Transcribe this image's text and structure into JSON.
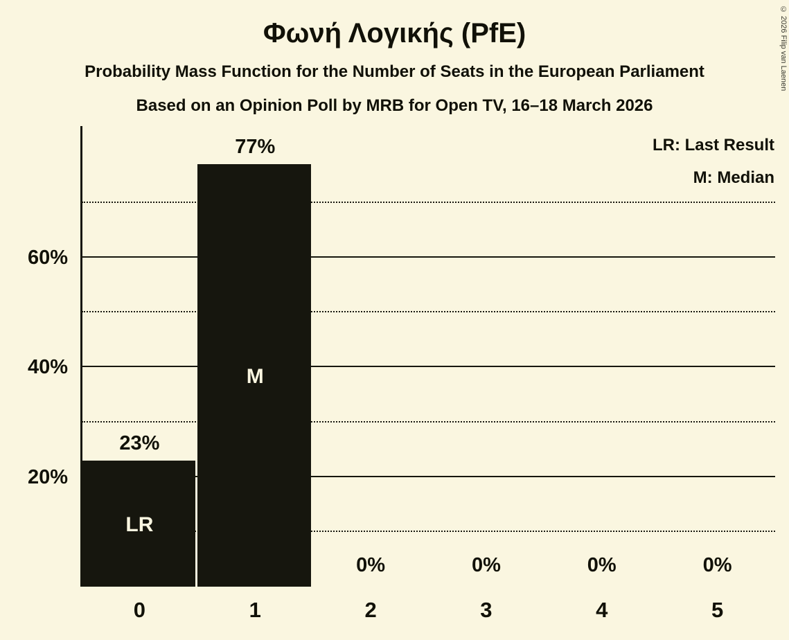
{
  "title": "Φωνή Λογικής (PfE)",
  "subtitle1": "Probability Mass Function for the Number of Seats in the European Parliament",
  "subtitle2": "Based on an Opinion Poll by MRB for Open TV, 16–18 March 2026",
  "copyright": "© 2026 Filip van Laenen",
  "legend": {
    "lr": "LR: Last Result",
    "m": "M: Median"
  },
  "colors": {
    "background": "#faf6e0",
    "bar": "#16160e",
    "text": "#111108",
    "bar_label": "#faf6e0"
  },
  "chart_data": {
    "type": "bar",
    "title": "Φωνή Λογικής (PfE)",
    "categories": [
      "0",
      "1",
      "2",
      "3",
      "4",
      "5"
    ],
    "values": [
      23,
      77,
      0,
      0,
      0,
      0
    ],
    "value_labels": [
      "23%",
      "77%",
      "0%",
      "0%",
      "0%",
      "0%"
    ],
    "bar_annotations": [
      "LR",
      "M",
      "",
      "",
      "",
      ""
    ],
    "xlabel": "",
    "ylabel": "",
    "ylim": [
      0,
      84
    ],
    "yticks": [
      {
        "value": 20,
        "label": "20%"
      },
      {
        "value": 40,
        "label": "40%"
      },
      {
        "value": 60,
        "label": "60%"
      }
    ],
    "solid_gridlines": [
      20,
      40,
      60
    ],
    "dotted_gridlines": [
      10,
      30,
      50,
      70
    ],
    "grid": true,
    "legend_position": "top-right",
    "legend_entries": [
      "LR: Last Result",
      "M: Median"
    ]
  }
}
